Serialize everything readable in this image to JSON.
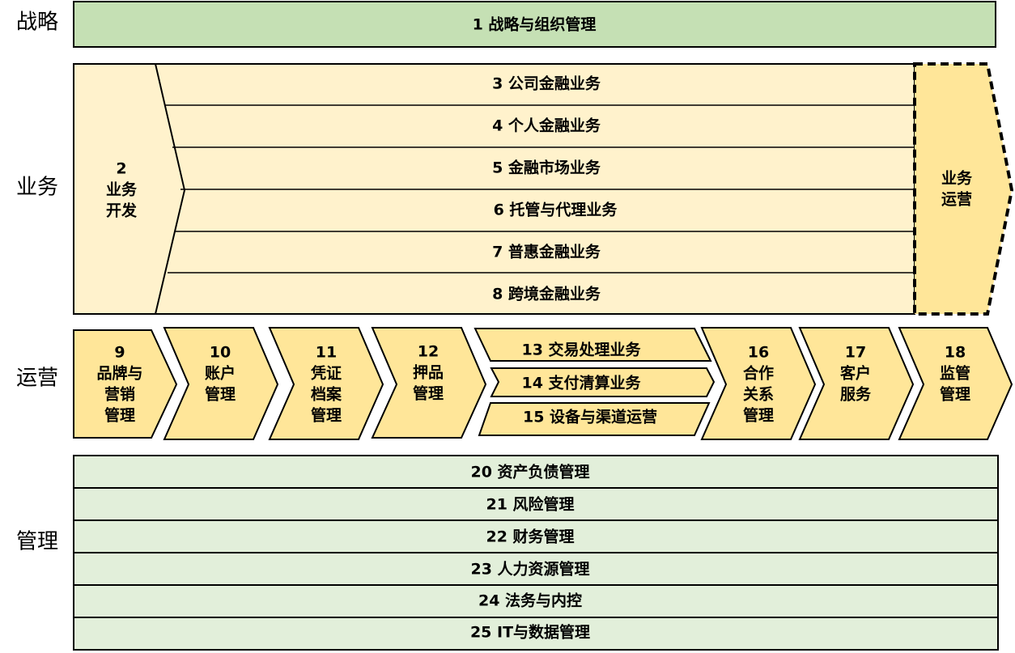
{
  "colors": {
    "strategy": "#c5e0b4",
    "business": "#fff2cc",
    "operations": "#ffe699",
    "management": "#e2efda"
  },
  "row_labels": {
    "strategy": "战略",
    "business": "业务",
    "operations": "运营",
    "management": "管理"
  },
  "strategy": {
    "item": "1 战略与组织管理"
  },
  "business": {
    "development": [
      "2",
      "业务",
      "开发"
    ],
    "lines": [
      "3 公司金融业务",
      "4 个人金融业务",
      "5 金融市场业务",
      "6 托管与代理业务",
      "7 普惠金融业务",
      "8 跨境金融业务"
    ],
    "operations": [
      "业务",
      "运营"
    ]
  },
  "operations": {
    "brand": [
      "9",
      "品牌与",
      "营销",
      "管理"
    ],
    "account": [
      "10",
      "账户",
      "管理"
    ],
    "voucher": [
      "11",
      "凭证",
      "档案",
      "管理"
    ],
    "collateral": [
      "12",
      "押品",
      "管理"
    ],
    "transaction": "13 交易处理业务",
    "payment": "14 支付清算业务",
    "channel": "15 设备与渠道运营",
    "partner": [
      "16",
      "合作",
      "关系",
      "管理"
    ],
    "customer": [
      "17",
      "客户",
      "服务"
    ],
    "regulatory": [
      "18",
      "监管",
      "管理"
    ]
  },
  "management": {
    "items": [
      "20 资产负债管理",
      "21 风险管理",
      "22 财务管理",
      "23 人力资源管理",
      "24 法务与内控",
      "25 IT与数据管理"
    ]
  }
}
